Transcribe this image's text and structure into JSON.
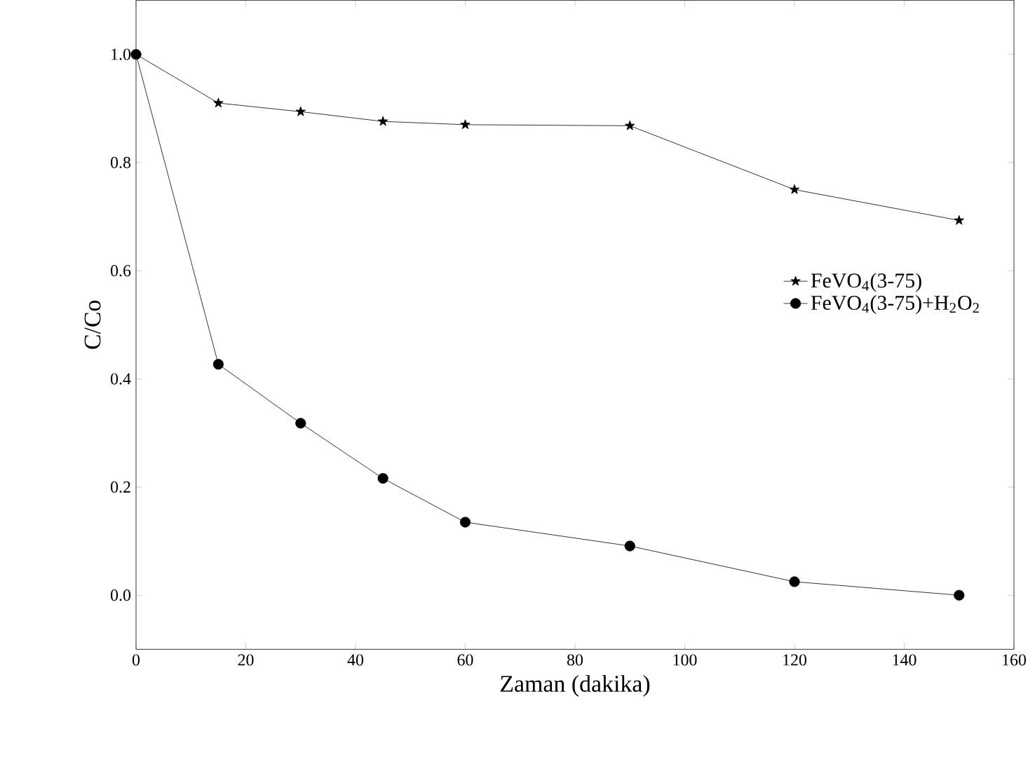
{
  "chart_data": {
    "type": "line",
    "xlabel": "Zaman (dakika)",
    "ylabel": "C/Co",
    "x": [
      0,
      15,
      30,
      45,
      60,
      90,
      120,
      150
    ],
    "series": [
      {
        "name": "FeVO$_{4}$(3-75)",
        "color": "#000000",
        "marker": "star",
        "values": [
          1.0,
          0.91,
          0.894,
          0.876,
          0.87,
          0.868,
          0.75,
          0.693
        ]
      },
      {
        "name": "FeVO$_{4}$(3-75)+H$_{2}$O$_{2}$",
        "color": "#000000",
        "marker": "circle",
        "values": [
          1.0,
          0.427,
          0.318,
          0.216,
          0.135,
          0.091,
          0.025,
          0.0
        ]
      }
    ],
    "xlim": [
      0,
      160
    ],
    "ylim": [
      -0.1,
      1.1
    ],
    "xticks": [
      0,
      20,
      40,
      60,
      80,
      100,
      120,
      140,
      160
    ],
    "yticks": [
      {
        "value": 0,
        "label": "0.0"
      },
      {
        "value": 0.2,
        "label": "0.2"
      },
      {
        "value": 0.4,
        "label": "0.4"
      },
      {
        "value": 0.6,
        "label": "0.6"
      },
      {
        "value": 0.8,
        "label": "0.8"
      },
      {
        "value": 1,
        "label": "1.0"
      }
    ],
    "legend": "right",
    "grid": false,
    "line_style": "solid"
  }
}
